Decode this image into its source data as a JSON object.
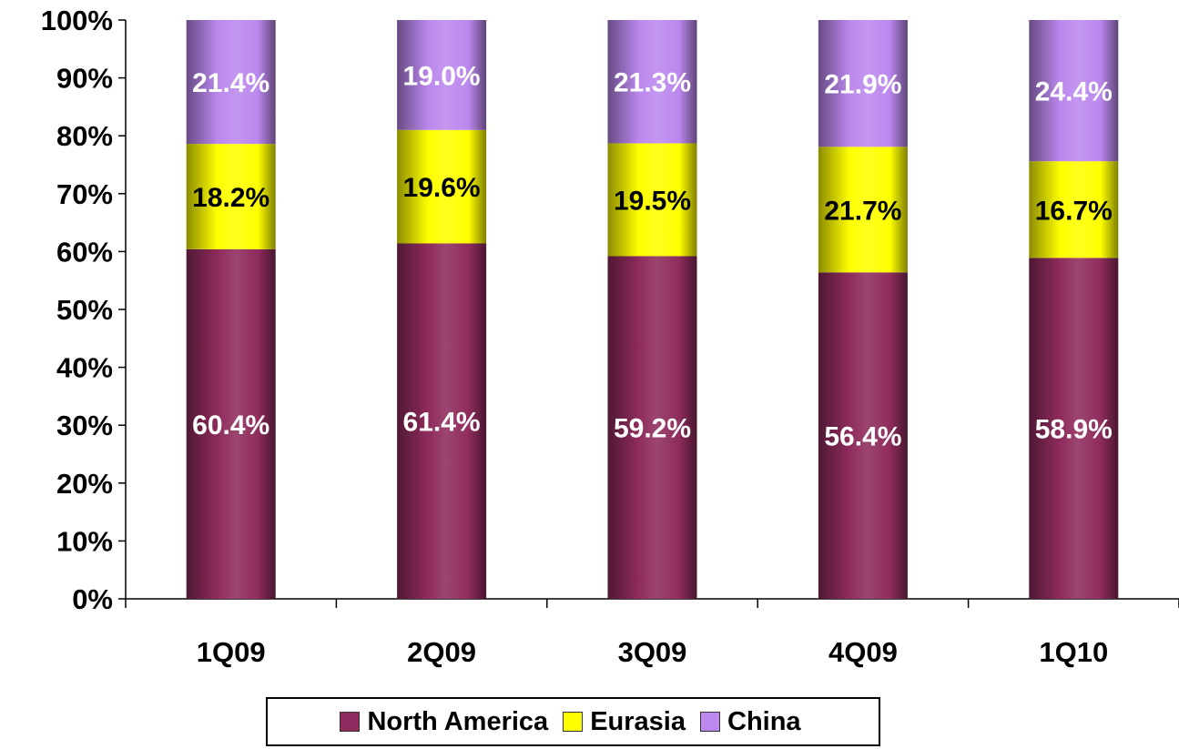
{
  "chart_data": {
    "type": "bar",
    "stacked": true,
    "categories": [
      "1Q09",
      "2Q09",
      "3Q09",
      "4Q09",
      "1Q10"
    ],
    "series": [
      {
        "name": "North America",
        "color": "#8f2c5d",
        "values": [
          60.4,
          61.4,
          59.2,
          56.4,
          58.9
        ],
        "labels": [
          "60.4%",
          "61.4%",
          "59.2%",
          "56.4%",
          "58.9%"
        ]
      },
      {
        "name": "Eurasia",
        "color": "#ffff00",
        "values": [
          18.2,
          19.6,
          19.5,
          21.7,
          16.7
        ],
        "labels": [
          "18.2%",
          "19.6%",
          "19.5%",
          "21.7%",
          "16.7%"
        ]
      },
      {
        "name": "China",
        "color": "#bb88ee",
        "values": [
          21.4,
          19.0,
          21.3,
          21.9,
          24.4
        ],
        "labels": [
          "21.4%",
          "19.0%",
          "21.3%",
          "21.9%",
          "24.4%"
        ]
      }
    ],
    "y_ticks": [
      "0%",
      "10%",
      "20%",
      "30%",
      "40%",
      "50%",
      "60%",
      "70%",
      "80%",
      "90%",
      "100%"
    ],
    "ylim": [
      0,
      100
    ],
    "grid": false,
    "legend_position": "bottom"
  }
}
